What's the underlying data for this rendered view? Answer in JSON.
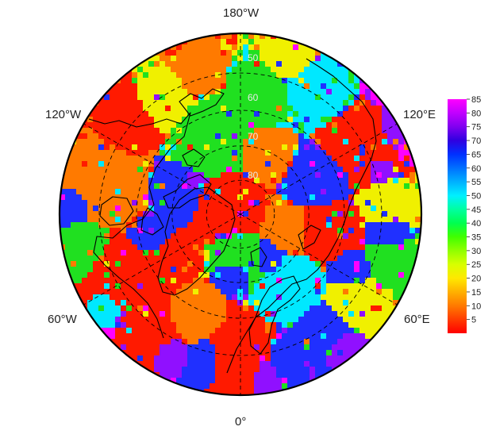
{
  "map": {
    "projection": "north polar stereographic",
    "graticule_style": "dashed",
    "longitude_labels": {
      "top": "180°W",
      "bottom": "0°",
      "upper_left": "120°W",
      "upper_right": "120°E",
      "lower_left": "60°W",
      "lower_right": "60°E"
    },
    "latitude_labels": [
      "50",
      "60",
      "70",
      "80"
    ],
    "latitude_rings_deg": [
      50,
      60,
      70,
      80
    ],
    "meridians_deg": [
      0,
      60,
      120,
      180,
      240,
      300
    ],
    "min_latitude_deg": 40
  },
  "colorbar": {
    "min": 0,
    "max": 85,
    "ticks": [
      "5",
      "10",
      "15",
      "20",
      "25",
      "30",
      "35",
      "40",
      "45",
      "50",
      "55",
      "60",
      "65",
      "70",
      "75",
      "80",
      "85"
    ],
    "colors": [
      "#ff0000",
      "#ff3c00",
      "#ff7a00",
      "#ffb000",
      "#ffe800",
      "#d8ff00",
      "#90ff00",
      "#40ff00",
      "#00ff50",
      "#00ffa0",
      "#00f0ff",
      "#00b0ff",
      "#0070ff",
      "#0030ff",
      "#3000e0",
      "#8000f0",
      "#c000ff",
      "#ff00ff"
    ]
  },
  "field_colors": {
    "red": "#ff1a00",
    "orange": "#ff7a00",
    "yellow": "#f0f000",
    "green": "#20e020",
    "cyan": "#00e8ff",
    "blue": "#2030ff",
    "purple": "#9010ff",
    "magenta": "#ff00ff"
  },
  "coastline_color": "#000000"
}
